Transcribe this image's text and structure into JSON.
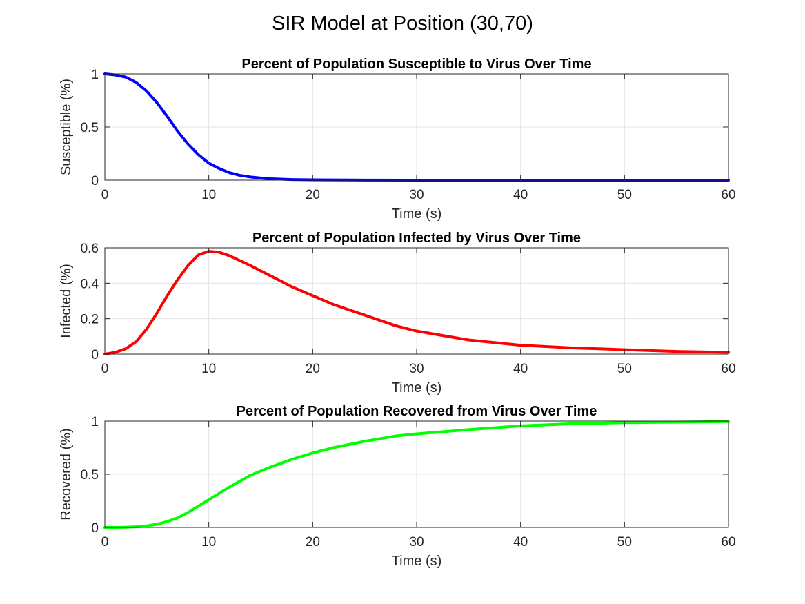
{
  "figure": {
    "suptitle": "SIR Model at Position (30,70)"
  },
  "chart_data": [
    {
      "type": "line",
      "title": "Percent of Population Susceptible to Virus Over Time",
      "xlabel": "Time (s)",
      "ylabel": "Susceptible (%)",
      "xlim": [
        0,
        60
      ],
      "ylim": [
        0,
        1
      ],
      "xticks": [
        "0",
        "10",
        "20",
        "30",
        "40",
        "50",
        "60"
      ],
      "yticks": [
        "0",
        "0.5",
        "1"
      ],
      "grid": true,
      "series": [
        {
          "color": "#0000ff",
          "x": [
            0,
            1,
            2,
            3,
            4,
            5,
            6,
            7,
            8,
            9,
            10,
            11,
            12,
            13,
            14,
            15,
            16,
            18,
            20,
            25,
            30,
            40,
            50,
            60
          ],
          "y": [
            1.0,
            0.99,
            0.97,
            0.92,
            0.84,
            0.73,
            0.6,
            0.46,
            0.34,
            0.24,
            0.16,
            0.11,
            0.07,
            0.045,
            0.03,
            0.02,
            0.013,
            0.006,
            0.003,
            0.001,
            0.0,
            0.0,
            0.0,
            0.0
          ]
        }
      ]
    },
    {
      "type": "line",
      "title": "Percent of Population Infected by Virus Over Time",
      "xlabel": "Time (s)",
      "ylabel": "Infected (%)",
      "xlim": [
        0,
        60
      ],
      "ylim": [
        0,
        0.6
      ],
      "xticks": [
        "0",
        "10",
        "20",
        "30",
        "40",
        "50",
        "60"
      ],
      "yticks": [
        "0",
        "0.2",
        "0.4",
        "0.6"
      ],
      "grid": true,
      "series": [
        {
          "color": "#ff0000",
          "x": [
            0,
            1,
            2,
            3,
            4,
            5,
            6,
            7,
            8,
            9,
            10,
            11,
            12,
            14,
            16,
            18,
            20,
            22,
            25,
            28,
            30,
            35,
            40,
            45,
            50,
            55,
            60
          ],
          "y": [
            0.0,
            0.01,
            0.03,
            0.07,
            0.14,
            0.23,
            0.33,
            0.42,
            0.5,
            0.56,
            0.58,
            0.575,
            0.555,
            0.5,
            0.44,
            0.38,
            0.33,
            0.28,
            0.22,
            0.16,
            0.13,
            0.08,
            0.05,
            0.035,
            0.025,
            0.015,
            0.01
          ]
        }
      ]
    },
    {
      "type": "line",
      "title": "Percent of Population Recovered from Virus Over Time",
      "xlabel": "Time (s)",
      "ylabel": "Recovered (%)",
      "xlim": [
        0,
        60
      ],
      "ylim": [
        0,
        1
      ],
      "xticks": [
        "0",
        "10",
        "20",
        "30",
        "40",
        "50",
        "60"
      ],
      "yticks": [
        "0",
        "0.5",
        "1"
      ],
      "grid": true,
      "series": [
        {
          "color": "#00ff00",
          "x": [
            0,
            1,
            2,
            3,
            4,
            5,
            6,
            7,
            8,
            9,
            10,
            12,
            14,
            16,
            18,
            20,
            22,
            25,
            28,
            30,
            35,
            40,
            45,
            50,
            55,
            60
          ],
          "y": [
            0.0,
            0.0,
            0.002,
            0.006,
            0.014,
            0.03,
            0.055,
            0.09,
            0.14,
            0.2,
            0.26,
            0.38,
            0.49,
            0.57,
            0.64,
            0.7,
            0.75,
            0.81,
            0.86,
            0.88,
            0.92,
            0.955,
            0.975,
            0.985,
            0.99,
            0.995
          ]
        }
      ]
    }
  ]
}
